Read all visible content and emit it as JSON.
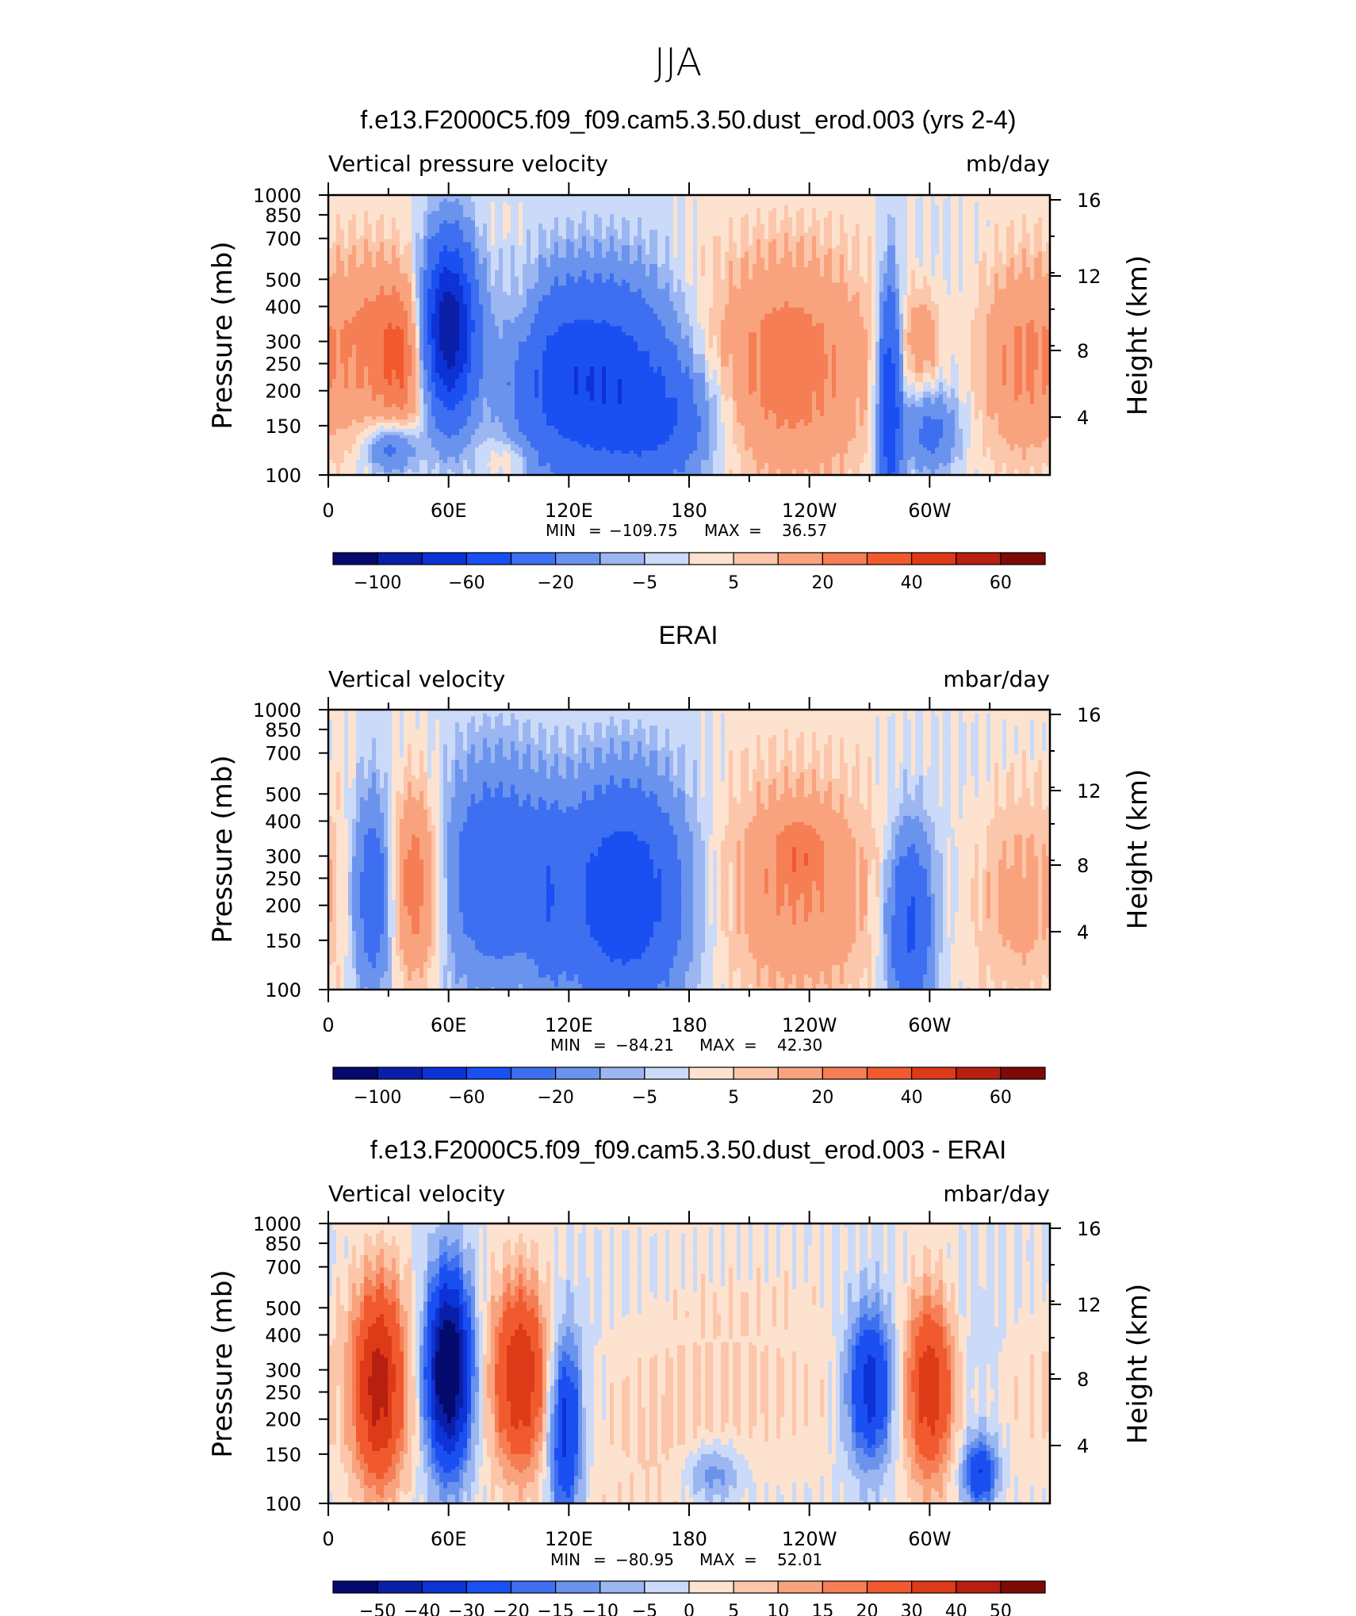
{
  "figure_title": "JJA",
  "chart_data": [
    {
      "type": "heatmap",
      "title": "f.e13.F2000C5.f09_f09.cam5.3.50.dust_erod.003 (yrs 2-4)",
      "left_label": "Vertical pressure velocity",
      "right_label": "mb/day",
      "ylabel": "Pressure (mb)",
      "ylabel_right": "Height (km)",
      "xticks": [
        "0",
        "60E",
        "120E",
        "180",
        "120W",
        "60W"
      ],
      "yticks": [
        "100",
        "150",
        "200",
        "250",
        "300",
        "400",
        "500",
        "700",
        "850",
        "1000"
      ],
      "yticks_right": [
        "16",
        "12",
        "8",
        "4"
      ],
      "stats": {
        "min_label": "MIN",
        "min": "−109.75",
        "max_label": "MAX",
        "max": "36.57"
      },
      "colorbar_labels": [
        "−100",
        "−60",
        "−20",
        "−5",
        "5",
        "20",
        "40",
        "60"
      ],
      "x_range": [
        0,
        360
      ],
      "y_range": [
        1000,
        100
      ],
      "blobs": [
        {
          "lon": 20,
          "p": 330,
          "sx": 14,
          "sy": 0.55,
          "a": 18
        },
        {
          "lon": 38,
          "p": 380,
          "sx": 9,
          "sy": 0.45,
          "a": 25
        },
        {
          "lon": 32,
          "p": 800,
          "sx": 9,
          "sy": 0.15,
          "a": -30
        },
        {
          "lon": 60,
          "p": 300,
          "sx": 9,
          "sy": 0.5,
          "a": -100
        },
        {
          "lon": 112,
          "p": 450,
          "sx": 18,
          "sy": 0.55,
          "a": -35
        },
        {
          "lon": 145,
          "p": 480,
          "sx": 22,
          "sy": 0.6,
          "a": -45
        },
        {
          "lon": 172,
          "p": 650,
          "sx": 18,
          "sy": 0.35,
          "a": -25
        },
        {
          "lon": 98,
          "p": 270,
          "sx": 6,
          "sy": 0.3,
          "a": 8
        },
        {
          "lon": 90,
          "p": 880,
          "sx": 8,
          "sy": 0.12,
          "a": 10
        },
        {
          "lon": 230,
          "p": 420,
          "sx": 30,
          "sy": 0.7,
          "a": 24
        },
        {
          "lon": 280,
          "p": 560,
          "sx": 4,
          "sy": 0.7,
          "a": -60
        },
        {
          "lon": 300,
          "p": 700,
          "sx": 10,
          "sy": 0.25,
          "a": -25
        },
        {
          "lon": 296,
          "p": 330,
          "sx": 7,
          "sy": 0.3,
          "a": 16
        },
        {
          "lon": 345,
          "p": 380,
          "sx": 16,
          "sy": 0.6,
          "a": 22
        }
      ]
    },
    {
      "type": "heatmap",
      "title": "ERAI",
      "left_label": "Vertical velocity",
      "right_label": "mbar/day",
      "ylabel": "Pressure (mb)",
      "ylabel_right": "Height (km)",
      "xticks": [
        "0",
        "60E",
        "120E",
        "180",
        "120W",
        "60W"
      ],
      "yticks": [
        "100",
        "150",
        "200",
        "250",
        "300",
        "400",
        "500",
        "700",
        "850",
        "1000"
      ],
      "yticks_right": [
        "16",
        "12",
        "8",
        "4"
      ],
      "stats": {
        "min_label": "MIN",
        "min": "−84.21",
        "max_label": "MAX",
        "max": "42.30"
      },
      "colorbar_labels": [
        "−100",
        "−60",
        "−20",
        "−5",
        "5",
        "20",
        "40",
        "60"
      ],
      "x_range": [
        0,
        360
      ],
      "y_range": [
        1000,
        100
      ],
      "blobs": [
        {
          "lon": 22,
          "p": 450,
          "sx": 7,
          "sy": 0.6,
          "a": -35
        },
        {
          "lon": 44,
          "p": 420,
          "sx": 9,
          "sy": 0.55,
          "a": 30
        },
        {
          "lon": 82,
          "p": 380,
          "sx": 20,
          "sy": 0.65,
          "a": -35
        },
        {
          "lon": 148,
          "p": 470,
          "sx": 22,
          "sy": 0.65,
          "a": -55
        },
        {
          "lon": 110,
          "p": 500,
          "sx": 6,
          "sy": 0.5,
          "a": -15
        },
        {
          "lon": 235,
          "p": 450,
          "sx": 30,
          "sy": 0.7,
          "a": 18
        },
        {
          "lon": 235,
          "p": 320,
          "sx": 8,
          "sy": 0.2,
          "a": 12
        },
        {
          "lon": 290,
          "p": 600,
          "sx": 8,
          "sy": 0.55,
          "a": -45
        },
        {
          "lon": 345,
          "p": 450,
          "sx": 18,
          "sy": 0.65,
          "a": 14
        }
      ]
    },
    {
      "type": "heatmap",
      "title": "f.e13.F2000C5.f09_f09.cam5.3.50.dust_erod.003 - ERAI",
      "left_label": "Vertical velocity",
      "right_label": "mbar/day",
      "ylabel": "Pressure (mb)",
      "ylabel_right": "Height (km)",
      "xticks": [
        "0",
        "60E",
        "120E",
        "180",
        "120W",
        "60W"
      ],
      "yticks": [
        "100",
        "150",
        "200",
        "250",
        "300",
        "400",
        "500",
        "700",
        "850",
        "1000"
      ],
      "yticks_right": [
        "16",
        "12",
        "8",
        "4"
      ],
      "stats": {
        "min_label": "MIN",
        "min": "−80.95",
        "max_label": "MAX",
        "max": "52.01"
      },
      "colorbar_labels": [
        "−50",
        "−40",
        "−30",
        "−20",
        "−15",
        "−10",
        "−5",
        "0",
        "5",
        "10",
        "15",
        "20",
        "30",
        "40",
        "50"
      ],
      "x_range": [
        0,
        360
      ],
      "y_range": [
        1000,
        100
      ],
      "blobs": [
        {
          "lon": 25,
          "p": 380,
          "sx": 9,
          "sy": 0.6,
          "a": 42
        },
        {
          "lon": 60,
          "p": 330,
          "sx": 8,
          "sy": 0.55,
          "a": -70
        },
        {
          "lon": 96,
          "p": 350,
          "sx": 10,
          "sy": 0.55,
          "a": 40
        },
        {
          "lon": 118,
          "p": 550,
          "sx": 6,
          "sy": 0.55,
          "a": -35
        },
        {
          "lon": 160,
          "p": 450,
          "sx": 30,
          "sy": 0.7,
          "a": 8
        },
        {
          "lon": 192,
          "p": 780,
          "sx": 10,
          "sy": 0.18,
          "a": -15
        },
        {
          "lon": 270,
          "p": 380,
          "sx": 8,
          "sy": 0.45,
          "a": -35
        },
        {
          "lon": 300,
          "p": 380,
          "sx": 9,
          "sy": 0.55,
          "a": 40
        },
        {
          "lon": 325,
          "p": 780,
          "sx": 6,
          "sy": 0.2,
          "a": -30
        },
        {
          "lon": 350,
          "p": 380,
          "sx": 14,
          "sy": 0.5,
          "a": 6
        }
      ]
    }
  ],
  "colors": {
    "scale": [
      "#050a6e",
      "#0a1fa8",
      "#0d32d6",
      "#1a4ff2",
      "#3d6ff0",
      "#6a93ee",
      "#9bb6f1",
      "#cadaf8",
      "#fde3cf",
      "#fcc6aa",
      "#f9a37e",
      "#f67e54",
      "#f15a2e",
      "#dd3a18",
      "#b71f10",
      "#7e0a05"
    ]
  }
}
